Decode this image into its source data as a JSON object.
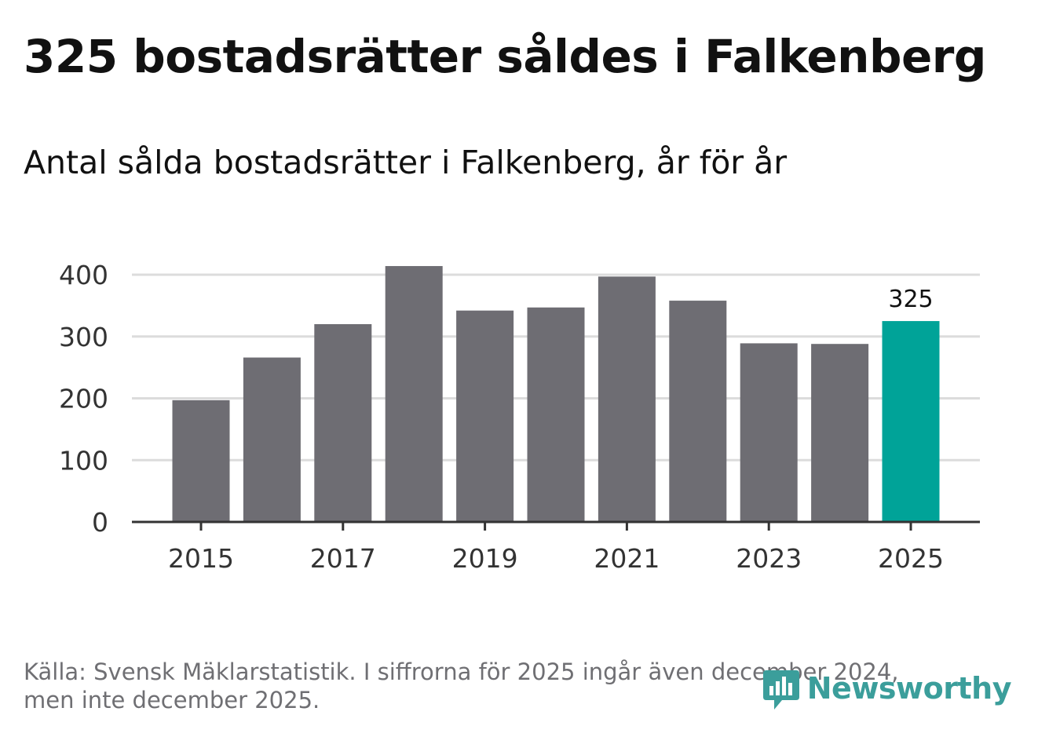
{
  "title": "325 bostadsrätter såldes i Falkenberg",
  "subtitle": "Antal sålda bostadsrätter i Falkenberg, år för år",
  "footer": {
    "line1": "Källa: Svensk Mäklarstatistik. I siffrorna för 2025 ingår även december 2024,",
    "line2": "men inte december 2025."
  },
  "brand": {
    "name": "Newsworthy",
    "logo_icon": "newsworthy-logo-icon",
    "color": "#3b9e9b"
  },
  "colors": {
    "bar": "#6e6d73",
    "highlight": "#00a398",
    "grid": "#dcdcdc",
    "axis": "#333333",
    "tick_text": "#333333"
  },
  "chart_data": {
    "type": "bar",
    "title": "Antal sålda bostadsrätter i Falkenberg, år för år",
    "xlabel": "",
    "ylabel": "",
    "categories": [
      "2015",
      "2016",
      "2017",
      "2018",
      "2019",
      "2020",
      "2021",
      "2022",
      "2023",
      "2024",
      "2025"
    ],
    "values": [
      197,
      266,
      320,
      414,
      342,
      347,
      397,
      358,
      289,
      288,
      325
    ],
    "highlight_index": 10,
    "data_labels": [
      {
        "index": 10,
        "text": "325"
      }
    ],
    "ylim": [
      0,
      400
    ],
    "yticks": [
      0,
      100,
      200,
      300,
      400
    ],
    "xtick_labels": [
      "2015",
      "2017",
      "2019",
      "2021",
      "2023",
      "2025"
    ],
    "grid": true,
    "legend": "none"
  }
}
